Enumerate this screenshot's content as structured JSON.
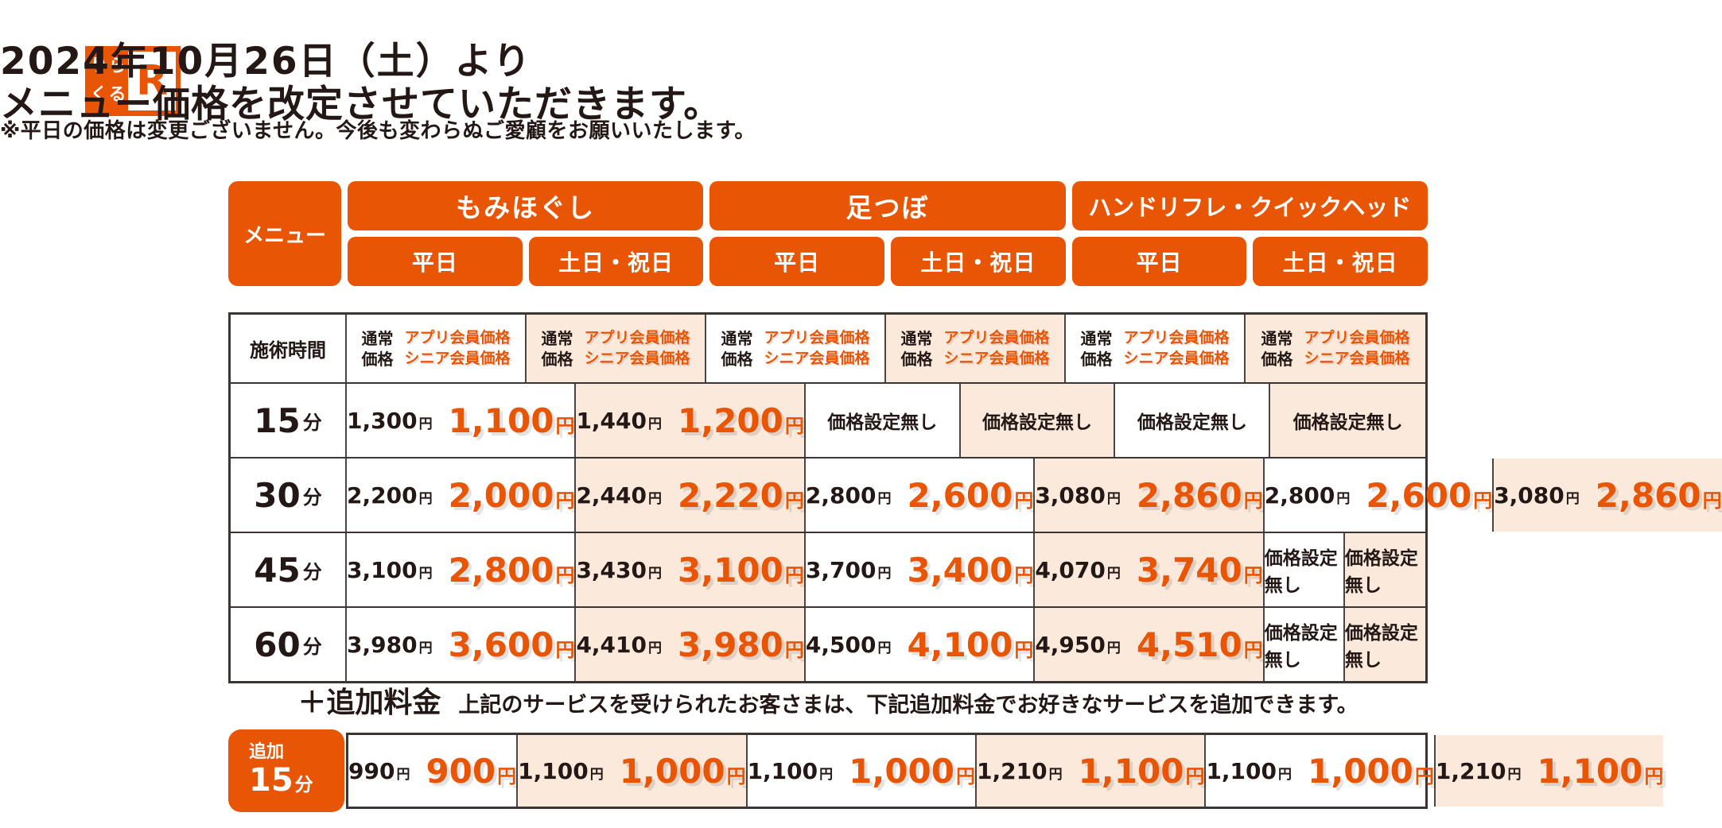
{
  "colors": {
    "accent": "#e85504",
    "weekend_bg": "#fbe9dc",
    "text": "#231815",
    "border": "#3b3633"
  },
  "logo": {
    "kana_tl": "り",
    "kana_tr": "ら",
    "kana_bl": "く",
    "kana_br": "る",
    "r_mark": "R"
  },
  "title": {
    "line1": "2024年10月26日（土）より",
    "line2": "メニュー価格を改定させていただきます。",
    "note": "※平日の価格は変更ございません。今後も変わらぬご愛顧をお願いいたします。"
  },
  "header": {
    "menu_label": "メニュー",
    "groups": [
      {
        "label": "もみほぐし",
        "days": [
          "平日",
          "土日・祝日"
        ]
      },
      {
        "label": "足つぼ",
        "days": [
          "平日",
          "土日・祝日"
        ]
      },
      {
        "label": "ハンドリフレ・クイックヘッド",
        "days": [
          "平日",
          "土日・祝日"
        ]
      }
    ]
  },
  "labels": {
    "yen": "円",
    "minutes": "分",
    "no_price": "価格設定無し",
    "time_header": "施術時間",
    "normal_price_l1": "通常",
    "normal_price_l2": "価格",
    "member_price_l1": "アプリ会員価格",
    "member_price_l2": "シニア会員価格"
  },
  "table": {
    "rows": [
      {
        "time": "15",
        "cells": [
          {
            "normal": "1,300",
            "member": "1,100"
          },
          {
            "normal": "1,440",
            "member": "1,200"
          },
          {
            "none": true
          },
          {
            "none": true
          },
          {
            "none": true
          },
          {
            "none": true
          }
        ]
      },
      {
        "time": "30",
        "cells": [
          {
            "normal": "2,200",
            "member": "2,000"
          },
          {
            "normal": "2,440",
            "member": "2,220"
          },
          {
            "normal": "2,800",
            "member": "2,600"
          },
          {
            "normal": "3,080",
            "member": "2,860"
          },
          {
            "normal": "2,800",
            "member": "2,600"
          },
          {
            "normal": "3,080",
            "member": "2,860"
          }
        ]
      },
      {
        "time": "45",
        "cells": [
          {
            "normal": "3,100",
            "member": "2,800"
          },
          {
            "normal": "3,430",
            "member": "3,100"
          },
          {
            "normal": "3,700",
            "member": "3,400"
          },
          {
            "normal": "4,070",
            "member": "3,740"
          },
          {
            "none": true
          },
          {
            "none": true
          }
        ]
      },
      {
        "time": "60",
        "cells": [
          {
            "normal": "3,980",
            "member": "3,600"
          },
          {
            "normal": "4,410",
            "member": "3,980"
          },
          {
            "normal": "4,500",
            "member": "4,100"
          },
          {
            "normal": "4,950",
            "member": "4,510"
          },
          {
            "none": true
          },
          {
            "none": true
          }
        ]
      }
    ]
  },
  "addon": {
    "heading": "＋追加料金",
    "description": "上記のサービスを受けられたお客さまは、下記追加料金でお好きなサービスを追加できます。",
    "badge_small": "追加",
    "badge_time": "15",
    "cells": [
      {
        "normal": "990",
        "member": "900"
      },
      {
        "normal": "1,100",
        "member": "1,000"
      },
      {
        "normal": "1,100",
        "member": "1,000"
      },
      {
        "normal": "1,210",
        "member": "1,100"
      },
      {
        "normal": "1,100",
        "member": "1,000"
      },
      {
        "normal": "1,210",
        "member": "1,100"
      }
    ]
  }
}
